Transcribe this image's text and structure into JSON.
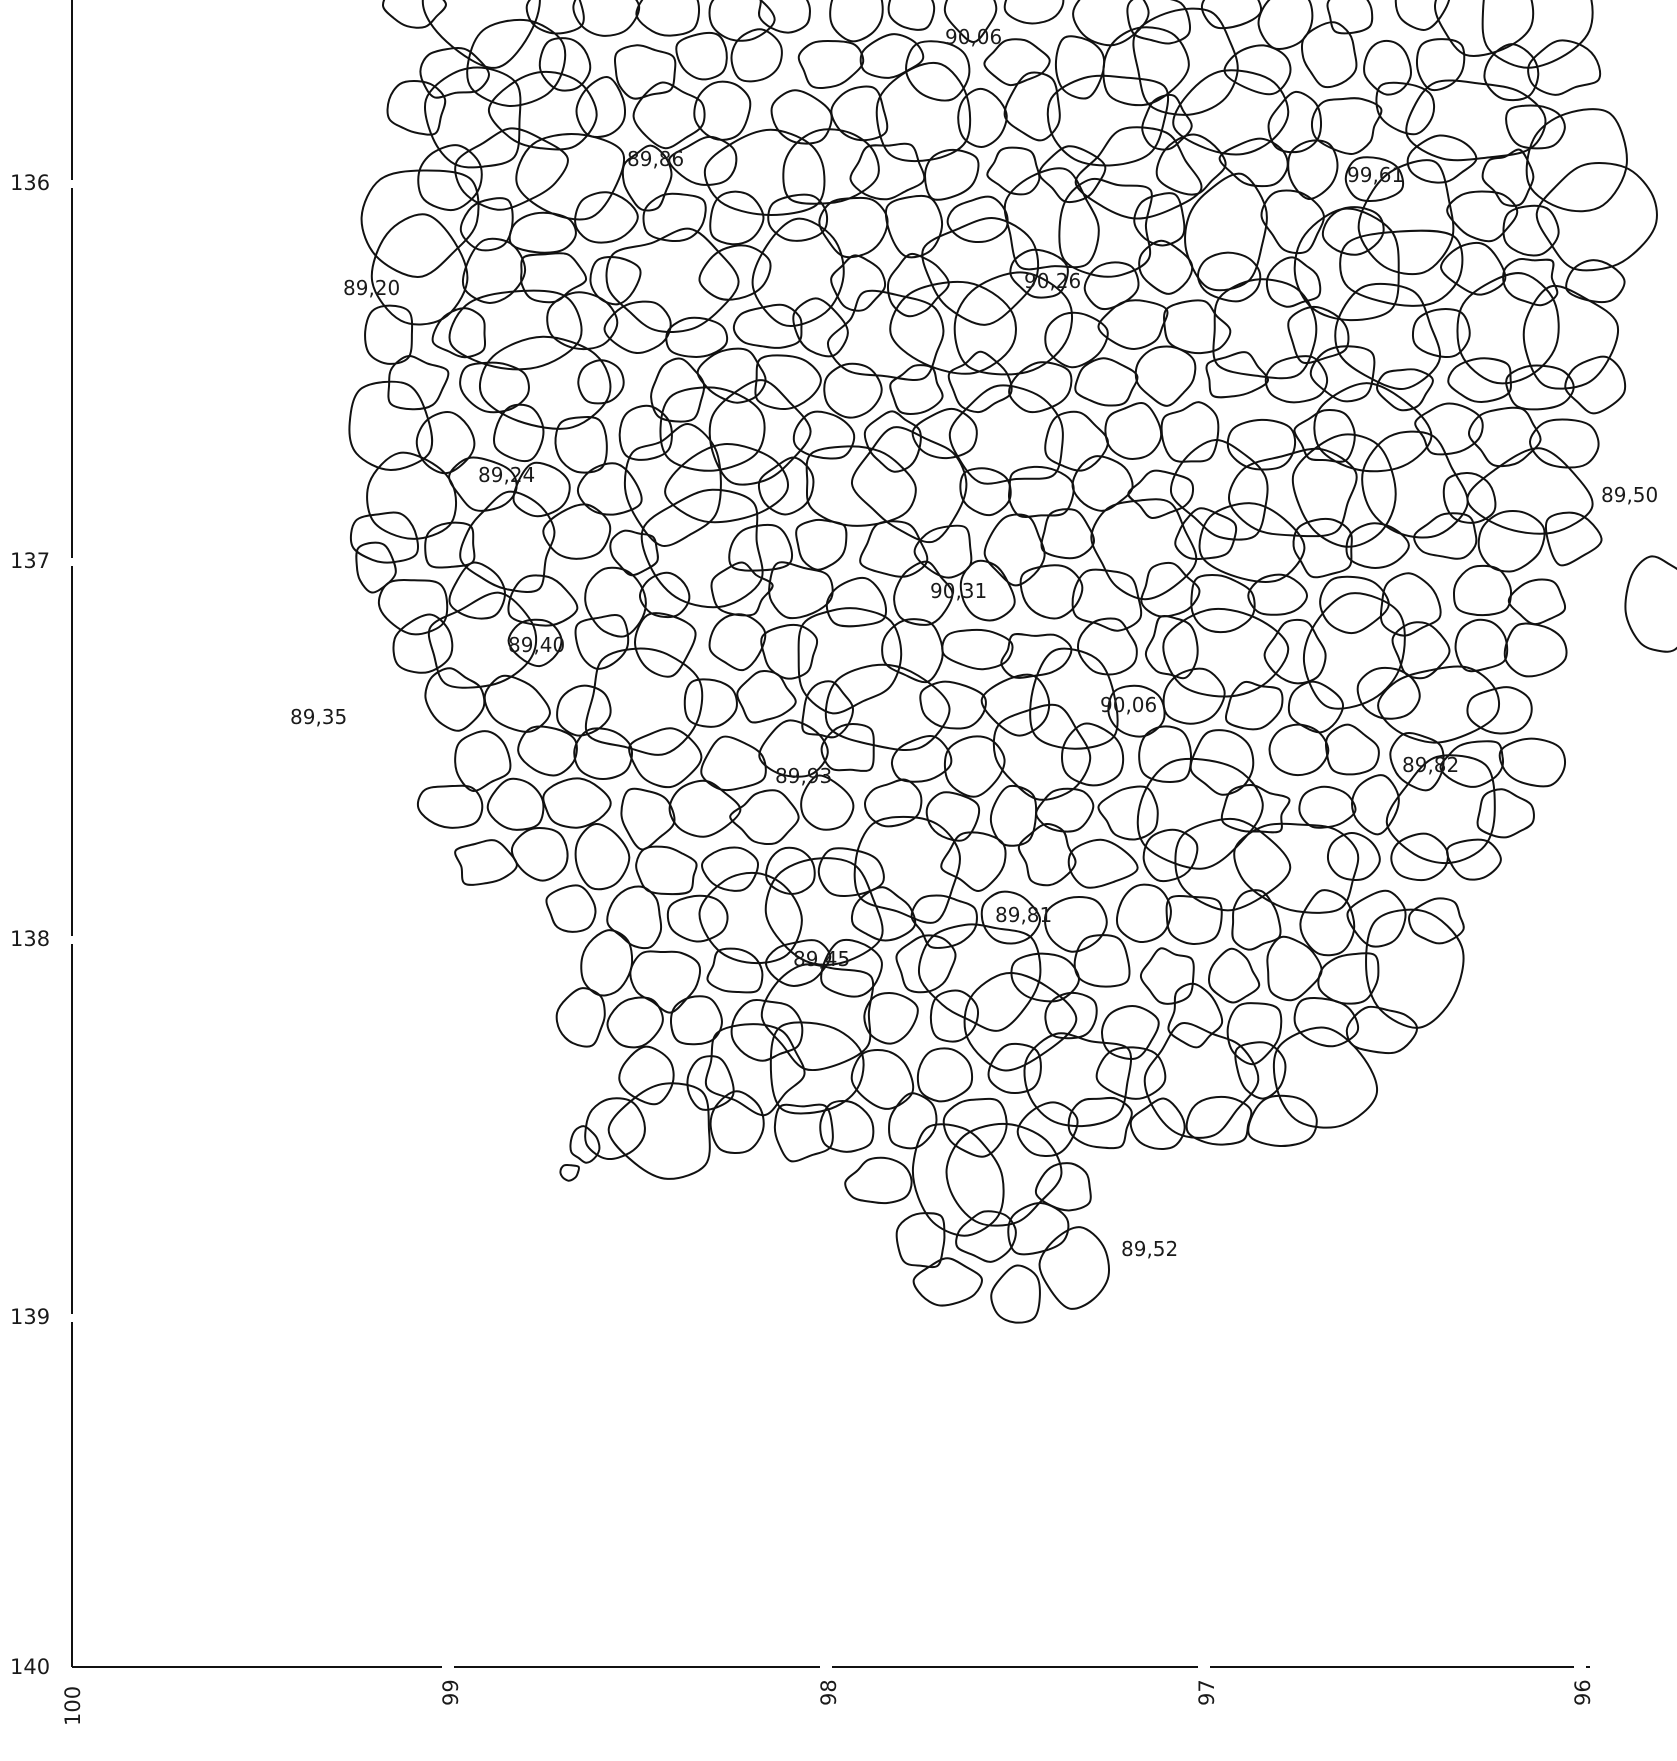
{
  "axes": {
    "y_ticks": [
      "136",
      "137",
      "138",
      "139",
      "140"
    ],
    "x_ticks": [
      "100",
      "99",
      "98",
      "97",
      "96"
    ]
  },
  "elevations": [
    "90,06",
    "89,86",
    "99,61",
    "89,20",
    "90,26",
    "89,24",
    "89,50",
    "90,31",
    "89,40",
    "89,35",
    "90,06",
    "89,82",
    "89,93",
    "89,81",
    "89,45",
    "89,52"
  ],
  "colors": {
    "ink": "#111111",
    "paper": "#ffffff"
  }
}
